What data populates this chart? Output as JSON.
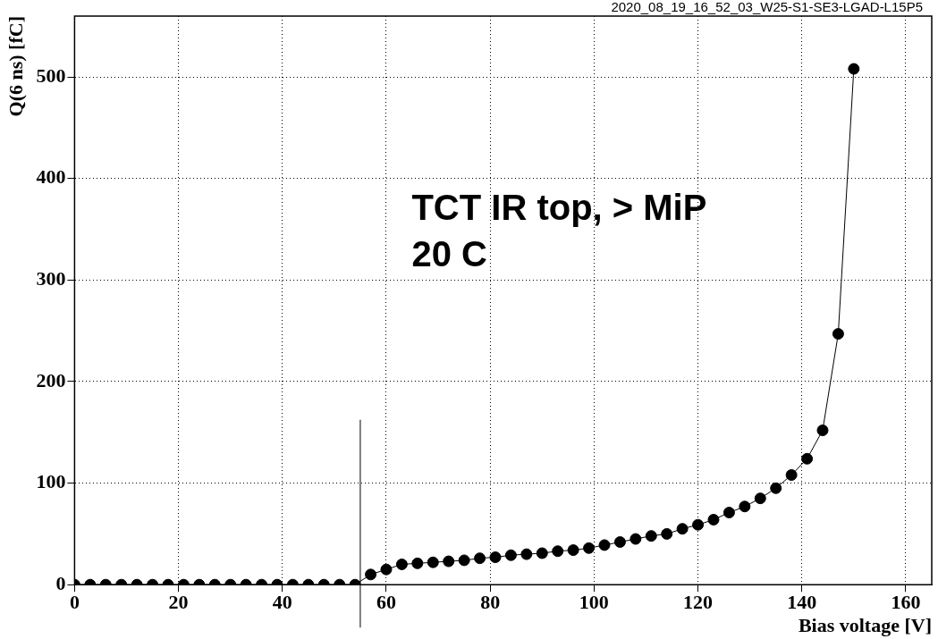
{
  "chart_data": {
    "type": "line",
    "xlabel": "Bias voltage [V]",
    "ylabel": "Q(6 ns) [fC]",
    "annotations": [
      "2020_08_19_16_52_03_W25-S1-SE3-LGAD-L15P5",
      "TCT IR top, > MiP",
      "20 C"
    ],
    "x": [
      0,
      3,
      6,
      9,
      12,
      15,
      18,
      21,
      24,
      27,
      30,
      33,
      36,
      39,
      42,
      45,
      48,
      51,
      54,
      57,
      60,
      63,
      66,
      69,
      72,
      75,
      78,
      81,
      84,
      87,
      90,
      93,
      96,
      99,
      102,
      105,
      108,
      111,
      114,
      117,
      120,
      123,
      126,
      129,
      132,
      135,
      138,
      141,
      144,
      147,
      150
    ],
    "series": [
      {
        "color": "#000000",
        "values": [
          0,
          0,
          0,
          0,
          0,
          0,
          0,
          0,
          0,
          0,
          0,
          0,
          0,
          0,
          0,
          0,
          0,
          0,
          0,
          10,
          15,
          20,
          21,
          22,
          23,
          24,
          26,
          27,
          29,
          30,
          31,
          33,
          34,
          36,
          39,
          42,
          45,
          48,
          50,
          55,
          59,
          64,
          71,
          77,
          85,
          95,
          108,
          124,
          152,
          247,
          508
        ]
      }
    ],
    "xlim": [
      0,
      165
    ],
    "ylim": [
      0,
      560
    ],
    "xticks": [
      0,
      20,
      40,
      60,
      80,
      100,
      120,
      140,
      160
    ],
    "yticks": [
      0,
      100,
      200,
      300,
      400,
      500
    ],
    "ref_lines": [
      {
        "axis": "x",
        "value": 55,
        "color": "#000000"
      }
    ],
    "grid": true,
    "legend": false,
    "marker": "circle",
    "line_style": "solid"
  }
}
